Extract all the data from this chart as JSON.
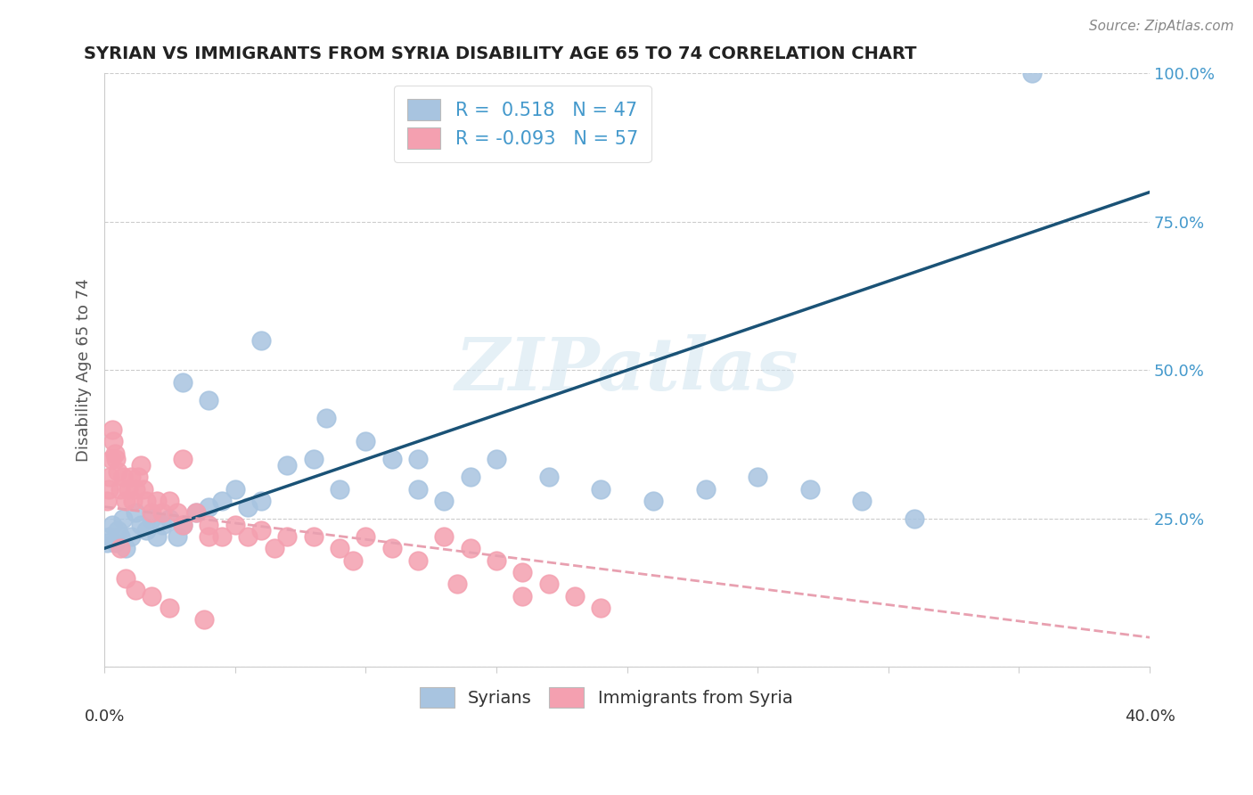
{
  "title": "SYRIAN VS IMMIGRANTS FROM SYRIA DISABILITY AGE 65 TO 74 CORRELATION CHART",
  "source": "Source: ZipAtlas.com",
  "ylabel": "Disability Age 65 to 74",
  "xlim": [
    0.0,
    40.0
  ],
  "ylim": [
    0.0,
    100.0
  ],
  "blue_R": 0.518,
  "blue_N": 47,
  "pink_R": -0.093,
  "pink_N": 57,
  "blue_color": "#a8c4e0",
  "pink_color": "#f4a0b0",
  "blue_line_color": "#1a5276",
  "pink_line_color": "#e8a0b0",
  "legend_label_blue": "Syrians",
  "legend_label_pink": "Immigrants from Syria",
  "watermark": "ZIPatlas",
  "blue_line_x0": 0.0,
  "blue_line_y0": 20.0,
  "blue_line_x1": 40.0,
  "blue_line_y1": 80.0,
  "pink_line_x0": 0.0,
  "pink_line_y0": 27.0,
  "pink_line_x1": 40.0,
  "pink_line_y1": 5.0,
  "bx": [
    0.1,
    0.2,
    0.3,
    0.4,
    0.5,
    0.6,
    0.7,
    0.8,
    1.0,
    1.2,
    1.4,
    1.6,
    1.8,
    2.0,
    2.2,
    2.5,
    2.8,
    3.0,
    3.5,
    4.0,
    4.5,
    5.0,
    5.5,
    6.0,
    7.0,
    8.0,
    9.0,
    10.0,
    11.0,
    12.0,
    13.0,
    14.0,
    15.0,
    17.0,
    19.0,
    21.0,
    23.0,
    25.0,
    27.0,
    29.0,
    31.0,
    3.0,
    4.0,
    6.0,
    8.5,
    12.0,
    35.5
  ],
  "by": [
    21,
    22,
    24,
    21,
    23,
    22,
    25,
    20,
    22,
    26,
    24,
    23,
    25,
    22,
    24,
    25,
    22,
    24,
    26,
    27,
    28,
    30,
    27,
    28,
    34,
    35,
    30,
    38,
    35,
    30,
    28,
    32,
    35,
    32,
    30,
    28,
    30,
    32,
    30,
    28,
    25,
    48,
    45,
    55,
    42,
    35,
    100
  ],
  "px": [
    0.1,
    0.15,
    0.2,
    0.25,
    0.3,
    0.35,
    0.4,
    0.45,
    0.5,
    0.6,
    0.7,
    0.8,
    0.9,
    1.0,
    1.1,
    1.2,
    1.3,
    1.4,
    1.5,
    1.6,
    1.8,
    2.0,
    2.2,
    2.5,
    2.8,
    3.0,
    3.5,
    4.0,
    4.5,
    5.0,
    5.5,
    6.0,
    7.0,
    8.0,
    9.0,
    10.0,
    11.0,
    12.0,
    13.0,
    14.0,
    15.0,
    16.0,
    17.0,
    18.0,
    19.0,
    3.0,
    4.0,
    6.5,
    9.5,
    13.5,
    16.0,
    0.6,
    0.8,
    1.2,
    1.8,
    2.5,
    3.8
  ],
  "py": [
    28,
    30,
    32,
    35,
    40,
    38,
    36,
    35,
    33,
    30,
    32,
    28,
    30,
    32,
    28,
    30,
    32,
    34,
    30,
    28,
    26,
    28,
    26,
    28,
    26,
    24,
    26,
    24,
    22,
    24,
    22,
    23,
    22,
    22,
    20,
    22,
    20,
    18,
    22,
    20,
    18,
    16,
    14,
    12,
    10,
    35,
    22,
    20,
    18,
    14,
    12,
    20,
    15,
    13,
    12,
    10,
    8
  ]
}
